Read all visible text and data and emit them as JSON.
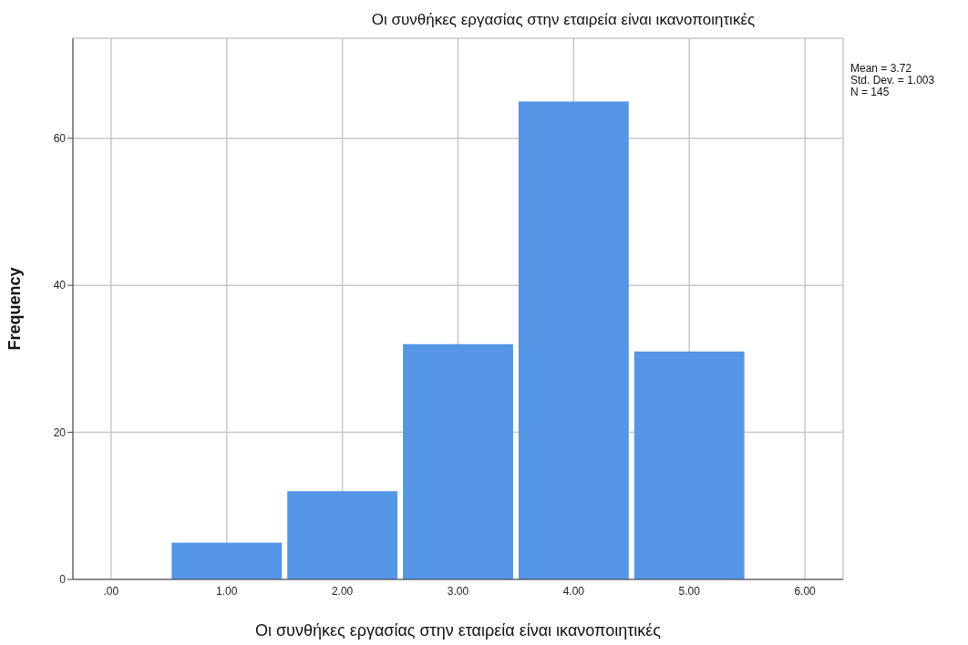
{
  "chart_data": {
    "type": "histogram",
    "title": "Οι συνθήκες εργασίας στην εταιρεία είναι ικανοποιητικές",
    "xlabel": "Οι συνθήκες εργασίας στην εταιρεία είναι ικανοποιητικές",
    "ylabel": "Frequency",
    "bins": [
      0.5,
      1.5,
      2.5,
      3.5,
      4.5,
      5.5
    ],
    "values": [
      5,
      12,
      32,
      65,
      31
    ],
    "color": "#5596e6",
    "xlim": [
      -0.33,
      6.33
    ],
    "xticks": [
      {
        "value": 0,
        "label": ".00"
      },
      {
        "value": 1,
        "label": "1.00"
      },
      {
        "value": 2,
        "label": "2.00"
      },
      {
        "value": 3,
        "label": "3.00"
      },
      {
        "value": 4,
        "label": "4.00"
      },
      {
        "value": 5,
        "label": "5.00"
      },
      {
        "value": 6,
        "label": "6.00"
      }
    ],
    "ylim": [
      0,
      73.6
    ],
    "yticks": [
      0,
      20,
      40,
      60
    ],
    "grid": true,
    "annotations": [
      "Mean = 3.72",
      "Std. Dev. = 1.003",
      "N = 145"
    ]
  }
}
